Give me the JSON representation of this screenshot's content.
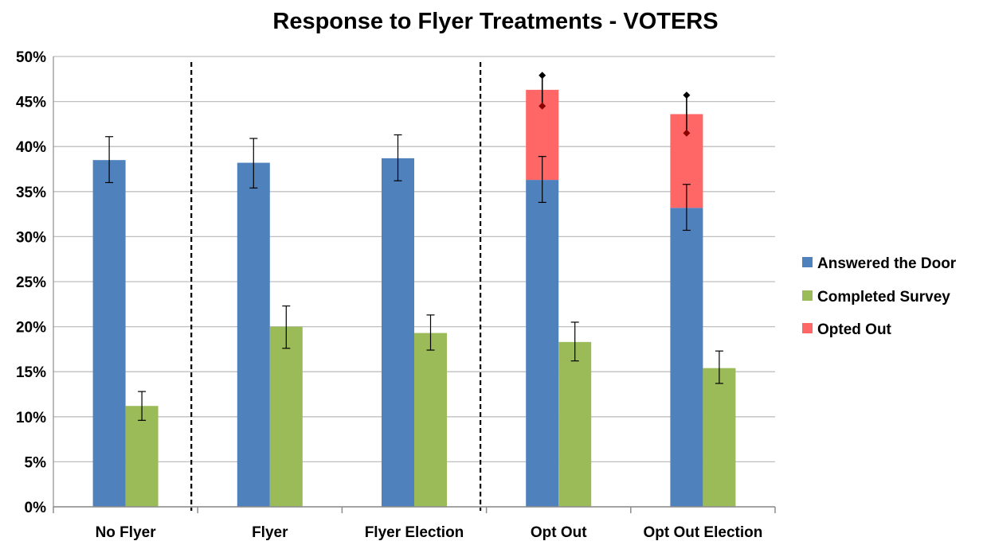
{
  "chart_data": {
    "type": "bar",
    "title": "Response to Flyer Treatments - VOTERS",
    "xlabel": "",
    "ylabel": "",
    "ylim": [
      0,
      50
    ],
    "y_ticks": [
      "0%",
      "5%",
      "10%",
      "15%",
      "20%",
      "25%",
      "30%",
      "35%",
      "40%",
      "45%",
      "50%"
    ],
    "y_tick_values": [
      0,
      5,
      10,
      15,
      20,
      25,
      30,
      35,
      40,
      45,
      50
    ],
    "grid": true,
    "legend_position": "right",
    "categories": [
      "No Flyer",
      "Flyer",
      "Flyer Election",
      "Opt Out",
      "Opt Out Election"
    ],
    "separators_after_category_index": [
      0,
      2
    ],
    "series": [
      {
        "name": "Answered the Door",
        "color": "#4f81bd",
        "values": [
          38.5,
          38.2,
          38.7,
          36.3,
          33.2
        ],
        "error": [
          [
            36.0,
            41.1
          ],
          [
            35.4,
            40.9
          ],
          [
            36.2,
            41.3
          ],
          [
            33.8,
            38.9
          ],
          [
            30.7,
            35.8
          ]
        ]
      },
      {
        "name": "Completed Survey",
        "color": "#9bbb59",
        "values": [
          11.2,
          20.0,
          19.3,
          18.3,
          15.4
        ],
        "error": [
          [
            9.6,
            12.8
          ],
          [
            17.6,
            22.3
          ],
          [
            17.4,
            21.3
          ],
          [
            16.2,
            20.5
          ],
          [
            13.7,
            17.3
          ]
        ]
      },
      {
        "name": "Opted Out",
        "color": "#ff6666",
        "stacked_on": "Answered the Door",
        "values": [
          null,
          null,
          null,
          10.0,
          10.4
        ],
        "markers": [
          null,
          null,
          null,
          [
            44.5,
            47.9
          ],
          [
            41.5,
            45.7
          ]
        ]
      }
    ]
  }
}
